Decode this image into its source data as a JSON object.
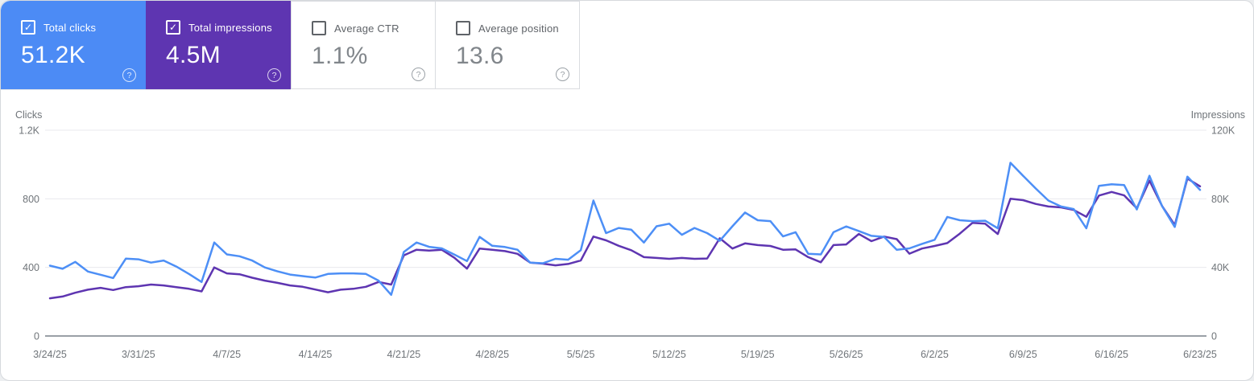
{
  "icons": {
    "check_glyph": "✓",
    "help_glyph": "?"
  },
  "colors": {
    "clicks_accent": "#4c8bf5",
    "impressions_accent": "#5e35b1",
    "gridline": "#e9eaed",
    "axis_line": "#9aa0a6"
  },
  "metric_cards": [
    {
      "label": "Total clicks",
      "value": "51.2K",
      "selected": true
    },
    {
      "label": "Total impressions",
      "value": "4.5M",
      "selected": true
    },
    {
      "label": "Average CTR",
      "value": "1.1%",
      "selected": false
    },
    {
      "label": "Average position",
      "value": "13.6",
      "selected": false
    }
  ],
  "chart_data": {
    "type": "line",
    "title": "",
    "grid": true,
    "x_labels": [
      "3/24/25",
      "3/31/25",
      "4/7/25",
      "4/14/25",
      "4/21/25",
      "4/28/25",
      "5/5/25",
      "5/12/25",
      "5/19/25",
      "5/26/25",
      "6/2/25",
      "6/9/25",
      "6/16/25",
      "6/23/25"
    ],
    "x_label_positions": [
      0,
      7,
      14,
      21,
      28,
      35,
      42,
      49,
      56,
      63,
      70,
      77,
      84,
      91
    ],
    "left_axis": {
      "title": "Clicks",
      "ticks": [
        "1.2K",
        "800",
        "400",
        "0"
      ],
      "tick_values": [
        1200,
        800,
        400,
        0
      ],
      "range": [
        0,
        1200
      ]
    },
    "right_axis": {
      "title": "Impressions",
      "ticks": [
        "120K",
        "80K",
        "40K",
        "0"
      ],
      "tick_values": [
        120000,
        80000,
        40000,
        0
      ],
      "range": [
        0,
        120000
      ]
    },
    "series": [
      {
        "name": "Total impressions",
        "axis": "right",
        "color": "#5e35b1",
        "values": [
          22000,
          23000,
          25200,
          27000,
          28100,
          26800,
          28500,
          29000,
          30000,
          29500,
          28500,
          27500,
          26000,
          40000,
          36500,
          36000,
          34000,
          32300,
          31000,
          29500,
          28700,
          27100,
          25500,
          27000,
          27500,
          28700,
          31500,
          30000,
          47000,
          50300,
          49800,
          50300,
          45600,
          39300,
          51000,
          50300,
          49500,
          47900,
          42800,
          42200,
          41200,
          42000,
          44000,
          58000,
          55800,
          52600,
          50000,
          46000,
          45500,
          45000,
          45500,
          45000,
          45200,
          57000,
          51000,
          54000,
          53000,
          52500,
          50300,
          50500,
          46000,
          43000,
          53000,
          53400,
          59500,
          55300,
          58000,
          56500,
          48000,
          51000,
          52500,
          54200,
          59700,
          66000,
          65500,
          59500,
          80000,
          79200,
          77000,
          75500,
          75000,
          73500,
          69500,
          81900,
          84000,
          82000,
          74500,
          90600,
          75800,
          64700,
          91800,
          87300
        ]
      },
      {
        "name": "Total clicks",
        "axis": "left",
        "color": "#4d8ff6",
        "values": [
          410,
          392,
          432,
          376,
          357,
          338,
          451,
          447,
          428,
          440,
          405,
          362,
          315,
          545,
          476,
          465,
          440,
          400,
          377,
          358,
          349,
          341,
          362,
          365,
          365,
          362,
          323,
          240,
          490,
          545,
          520,
          511,
          475,
          437,
          578,
          526,
          519,
          503,
          428,
          424,
          450,
          445,
          500,
          790,
          600,
          630,
          620,
          545,
          640,
          655,
          590,
          630,
          600,
          555,
          640,
          720,
          675,
          670,
          581,
          605,
          479,
          476,
          605,
          639,
          612,
          584,
          578,
          503,
          511,
          537,
          561,
          694,
          675,
          670,
          672,
          628,
          1010,
          934,
          860,
          790,
          755,
          740,
          628,
          875,
          885,
          880,
          738,
          934,
          757,
          636,
          929,
          852
        ]
      }
    ]
  }
}
